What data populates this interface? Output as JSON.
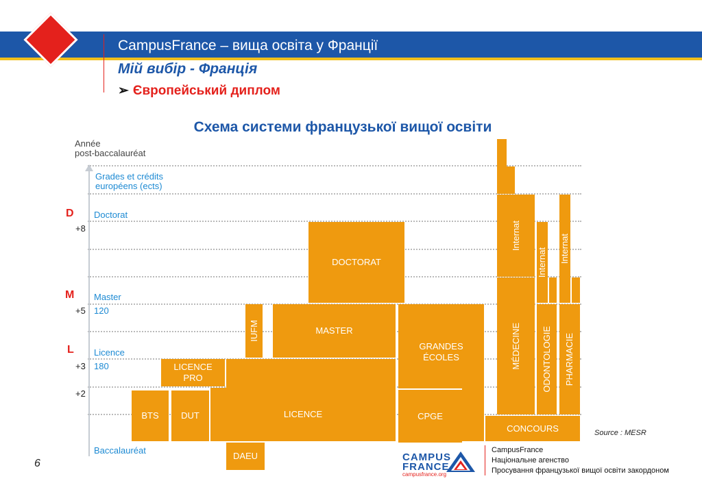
{
  "header": {
    "title": "CampusFrance – вища освіта у Франції",
    "subtitle": "Мій вибір - Франція",
    "bullet": "Європейський диплом",
    "scheme_title": "Схема системи французької вищої освіти"
  },
  "axis": {
    "annee_line1": "Année",
    "annee_line2": "post-baccalauréat",
    "grades_line1": "Grades et crédits",
    "grades_line2": "européens (ects)",
    "doctorat_letter": "D",
    "doctorat_label": "Doctorat",
    "plus8": "+8",
    "master_letter": "M",
    "master_label": "Master",
    "plus5": "+5",
    "ects_120": "120",
    "licence_letter": "L",
    "licence_label": "Licence",
    "plus3": "+3",
    "ects_180": "180",
    "plus2": "+2",
    "bac": "Baccalauréat"
  },
  "blocks": {
    "doctorat": "DOCTORAT",
    "iufm": "IUFM",
    "master": "MASTER",
    "grandes_ecoles": "GRANDES ÉCOLES",
    "licence_pro": "LICENCE PRO",
    "licence": "LICENCE",
    "bts": "BTS",
    "dut": "DUT",
    "cpge": "CPGE",
    "daeu": "DAEU",
    "concours": "CONCOURS",
    "medecine": "MÉDECINE",
    "odontologie": "ODONTOLOGIE",
    "pharmacie": "PHARMACIE",
    "internat": "Internat"
  },
  "source": "Source : MESR",
  "page_number": "6",
  "footer_logo": {
    "campus": "CAMPUS",
    "france": "FRANCE",
    "url": "campusfrance.org"
  },
  "footer": {
    "line1": "CampusFrance",
    "line2": "Національне агенство",
    "line3": "Просування французької вищої освіти закордоном"
  },
  "colors": {
    "blue": "#1d57a8",
    "orange": "#ef9a0f",
    "red": "#e4211c",
    "yellow": "#f0bf1b"
  }
}
